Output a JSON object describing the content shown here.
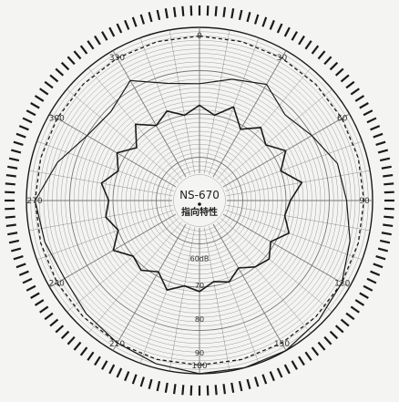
{
  "chart_data": {
    "type": "polar",
    "title": "NS-670",
    "subtitle": "指向特性",
    "units": "dB",
    "radial_ticks": [
      "60dB",
      "70",
      "80",
      "90"
    ],
    "angle_ticks_deg": [
      0,
      30,
      60,
      90,
      120,
      150,
      180,
      210,
      240,
      270,
      300,
      330
    ],
    "grid": true,
    "series": [
      {
        "style": "dashed",
        "theta_deg": [
          0,
          15,
          30,
          45,
          60,
          75,
          90,
          105,
          120,
          135,
          150,
          165,
          180,
          195,
          210,
          225,
          240,
          255,
          270,
          285,
          300,
          315,
          330,
          345
        ],
        "r_db": [
          88,
          88,
          88,
          88,
          88,
          88,
          88,
          88,
          88,
          88,
          88,
          88,
          88,
          88,
          88,
          88,
          88,
          88,
          88,
          88,
          88,
          88,
          88,
          88
        ]
      },
      {
        "style": "solid",
        "theta_deg": [
          0,
          15,
          30,
          45,
          60,
          75,
          90,
          105,
          120,
          135,
          150,
          165,
          180,
          195,
          210,
          225,
          240,
          255,
          270,
          285,
          300,
          315,
          330,
          345
        ],
        "r_db": [
          77,
          79,
          81,
          78,
          80,
          83,
          84,
          86,
          88,
          89,
          90,
          90,
          90,
          89,
          88,
          87,
          86,
          87,
          88,
          84,
          80,
          79,
          82,
          78
        ]
      },
      {
        "style": "dense",
        "theta_deg": [
          0,
          10,
          20,
          30,
          40,
          50,
          60,
          70,
          80,
          90,
          100,
          110,
          120,
          130,
          140,
          150,
          160,
          170,
          180,
          190,
          200,
          210,
          220,
          230,
          240,
          250,
          260,
          270,
          280,
          290,
          300,
          310,
          320,
          330,
          340,
          350
        ],
        "r_db": [
          72,
          70,
          73,
          69,
          72,
          70,
          73,
          70,
          74,
          71,
          70,
          72,
          69,
          71,
          70,
          68,
          70,
          69,
          71,
          70,
          72,
          69,
          71,
          70,
          73,
          70,
          72,
          71,
          73,
          70,
          72,
          69,
          73,
          70,
          72,
          70
        ]
      }
    ]
  },
  "colors": {
    "ink": "#1a1a1a",
    "grid": "#777777",
    "paper": "#f4f4f2"
  }
}
